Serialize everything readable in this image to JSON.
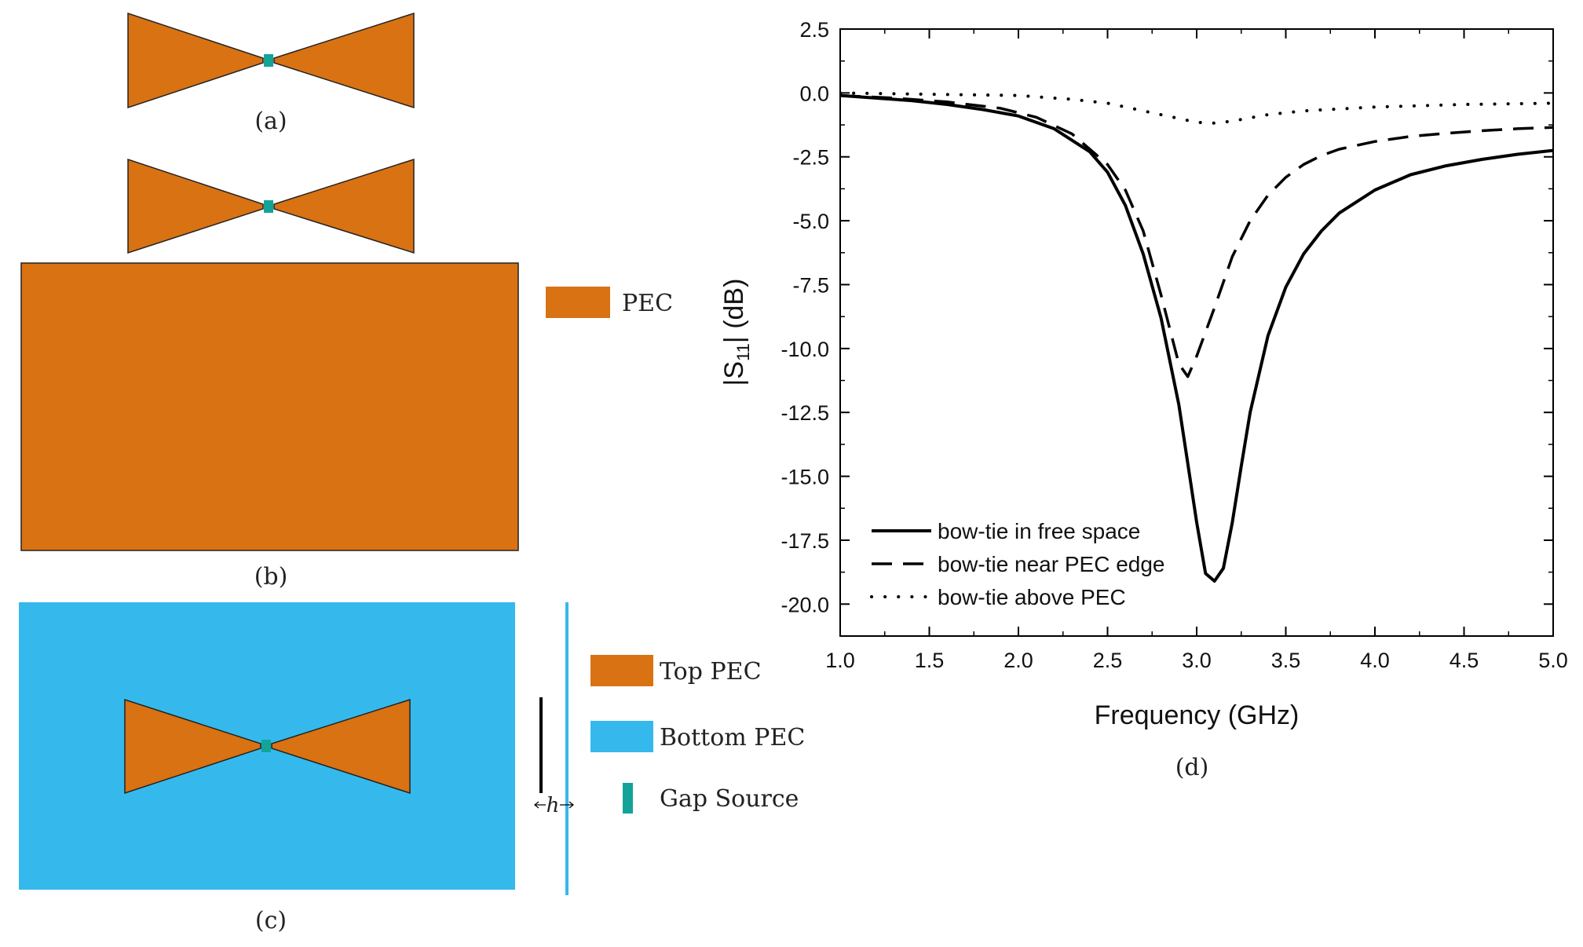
{
  "colors": {
    "pec": "#D87213",
    "bottom_pec": "#35B9EC",
    "gap_source": "#13A399",
    "line": "#000000"
  },
  "panels": {
    "a": {
      "caption": "(a)"
    },
    "b": {
      "caption": "(b)",
      "legend_pec": "PEC"
    },
    "c": {
      "caption": "(c)",
      "dimension_label": "h",
      "legend_top_pec": "Top PEC",
      "legend_bottom_pec": "Bottom PEC",
      "legend_gap_source": "Gap Source"
    },
    "d": {
      "caption": "(d)"
    }
  },
  "chart_data": {
    "type": "line",
    "title": "",
    "xlabel": "Frequency (GHz)",
    "ylabel_main": "|S",
    "ylabel_sub": "11",
    "ylabel_tail": "| (dB)",
    "xlim": [
      1.0,
      5.0
    ],
    "ylim": [
      -21.25,
      2.5
    ],
    "xticks": [
      "1.0",
      "1.5",
      "2.0",
      "2.5",
      "3.0",
      "3.5",
      "4.0",
      "4.5",
      "5.0"
    ],
    "yticks": [
      "2.5",
      "0.0",
      "-2.5",
      "-5.0",
      "-7.5",
      "-10.0",
      "-12.5",
      "-15.0",
      "-17.5",
      "-20.0"
    ],
    "grid": false,
    "legend_position": "bottom-left",
    "series": [
      {
        "name": "bow-tie in free space",
        "style": "solid",
        "x": [
          1.0,
          1.2,
          1.4,
          1.6,
          1.8,
          2.0,
          2.2,
          2.4,
          2.5,
          2.6,
          2.7,
          2.8,
          2.9,
          2.95,
          3.0,
          3.05,
          3.1,
          3.15,
          3.2,
          3.25,
          3.3,
          3.4,
          3.5,
          3.6,
          3.7,
          3.8,
          4.0,
          4.2,
          4.4,
          4.6,
          4.8,
          5.0
        ],
        "y": [
          -0.1,
          -0.2,
          -0.3,
          -0.45,
          -0.65,
          -0.9,
          -1.4,
          -2.3,
          -3.1,
          -4.4,
          -6.3,
          -8.8,
          -12.2,
          -14.5,
          -16.8,
          -18.8,
          -19.1,
          -18.6,
          -16.8,
          -14.6,
          -12.5,
          -9.5,
          -7.6,
          -6.3,
          -5.4,
          -4.7,
          -3.8,
          -3.2,
          -2.85,
          -2.6,
          -2.4,
          -2.25
        ]
      },
      {
        "name": "bow-tie near PEC edge",
        "style": "dashed",
        "x": [
          1.0,
          1.3,
          1.6,
          1.9,
          2.1,
          2.3,
          2.5,
          2.6,
          2.7,
          2.8,
          2.9,
          2.95,
          3.0,
          3.1,
          3.2,
          3.3,
          3.4,
          3.5,
          3.6,
          3.7,
          3.8,
          4.0,
          4.2,
          4.4,
          4.6,
          4.8,
          5.0
        ],
        "y": [
          -0.1,
          -0.2,
          -0.35,
          -0.6,
          -0.95,
          -1.6,
          -2.8,
          -3.8,
          -5.4,
          -7.9,
          -10.6,
          -11.1,
          -10.3,
          -8.4,
          -6.4,
          -5.0,
          -4.0,
          -3.3,
          -2.8,
          -2.45,
          -2.2,
          -1.9,
          -1.7,
          -1.58,
          -1.48,
          -1.4,
          -1.35
        ]
      },
      {
        "name": "bow-tie above PEC",
        "style": "dotted",
        "x": [
          1.0,
          1.5,
          2.0,
          2.3,
          2.5,
          2.7,
          2.9,
          3.0,
          3.1,
          3.2,
          3.4,
          3.6,
          4.0,
          4.5,
          5.0
        ],
        "y": [
          0.0,
          -0.05,
          -0.1,
          -0.25,
          -0.4,
          -0.7,
          -1.0,
          -1.15,
          -1.18,
          -1.1,
          -0.85,
          -0.7,
          -0.55,
          -0.45,
          -0.4
        ]
      }
    ]
  }
}
